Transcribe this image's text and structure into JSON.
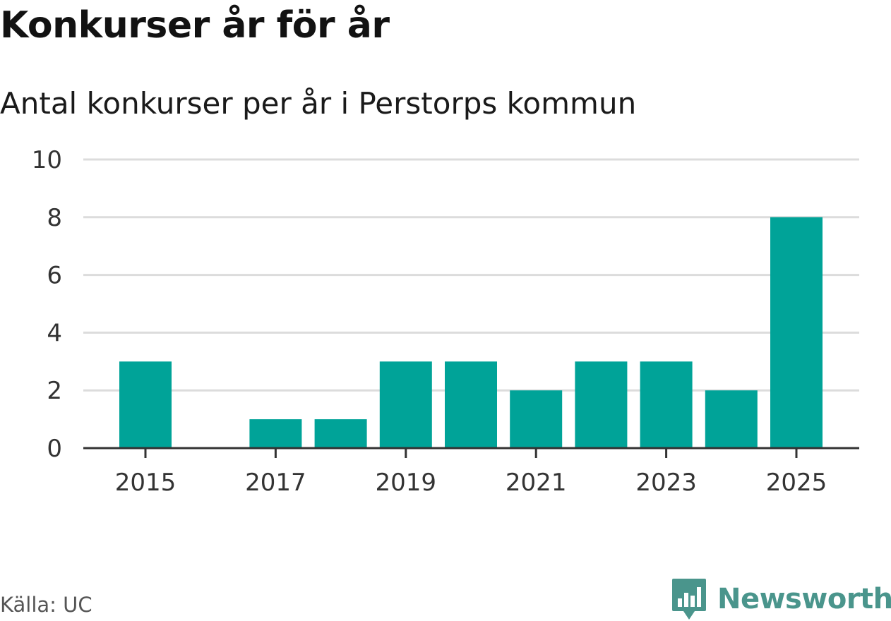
{
  "header": {
    "title": "Konkurser år för år",
    "subtitle": "Antal konkurser per år i Perstorps kommun"
  },
  "footer": {
    "source": "Källa: UC",
    "brand": "Newsworthy"
  },
  "colors": {
    "bar": "#00a398",
    "grid": "#dcdcdc",
    "axis": "#333333",
    "brand": "#4a958c"
  },
  "chart_data": {
    "type": "bar",
    "categories": [
      "2015",
      "2016",
      "2017",
      "2018",
      "2019",
      "2020",
      "2021",
      "2022",
      "2023",
      "2024",
      "2025"
    ],
    "values": [
      3,
      0,
      1,
      1,
      3,
      3,
      2,
      3,
      3,
      2,
      8
    ],
    "x_tick_labels": [
      "2015",
      "2017",
      "2019",
      "2021",
      "2023",
      "2025"
    ],
    "y_ticks": [
      0,
      2,
      4,
      6,
      8,
      10
    ],
    "ylim": [
      0,
      10
    ],
    "grid": true,
    "xlabel": "",
    "ylabel": ""
  }
}
